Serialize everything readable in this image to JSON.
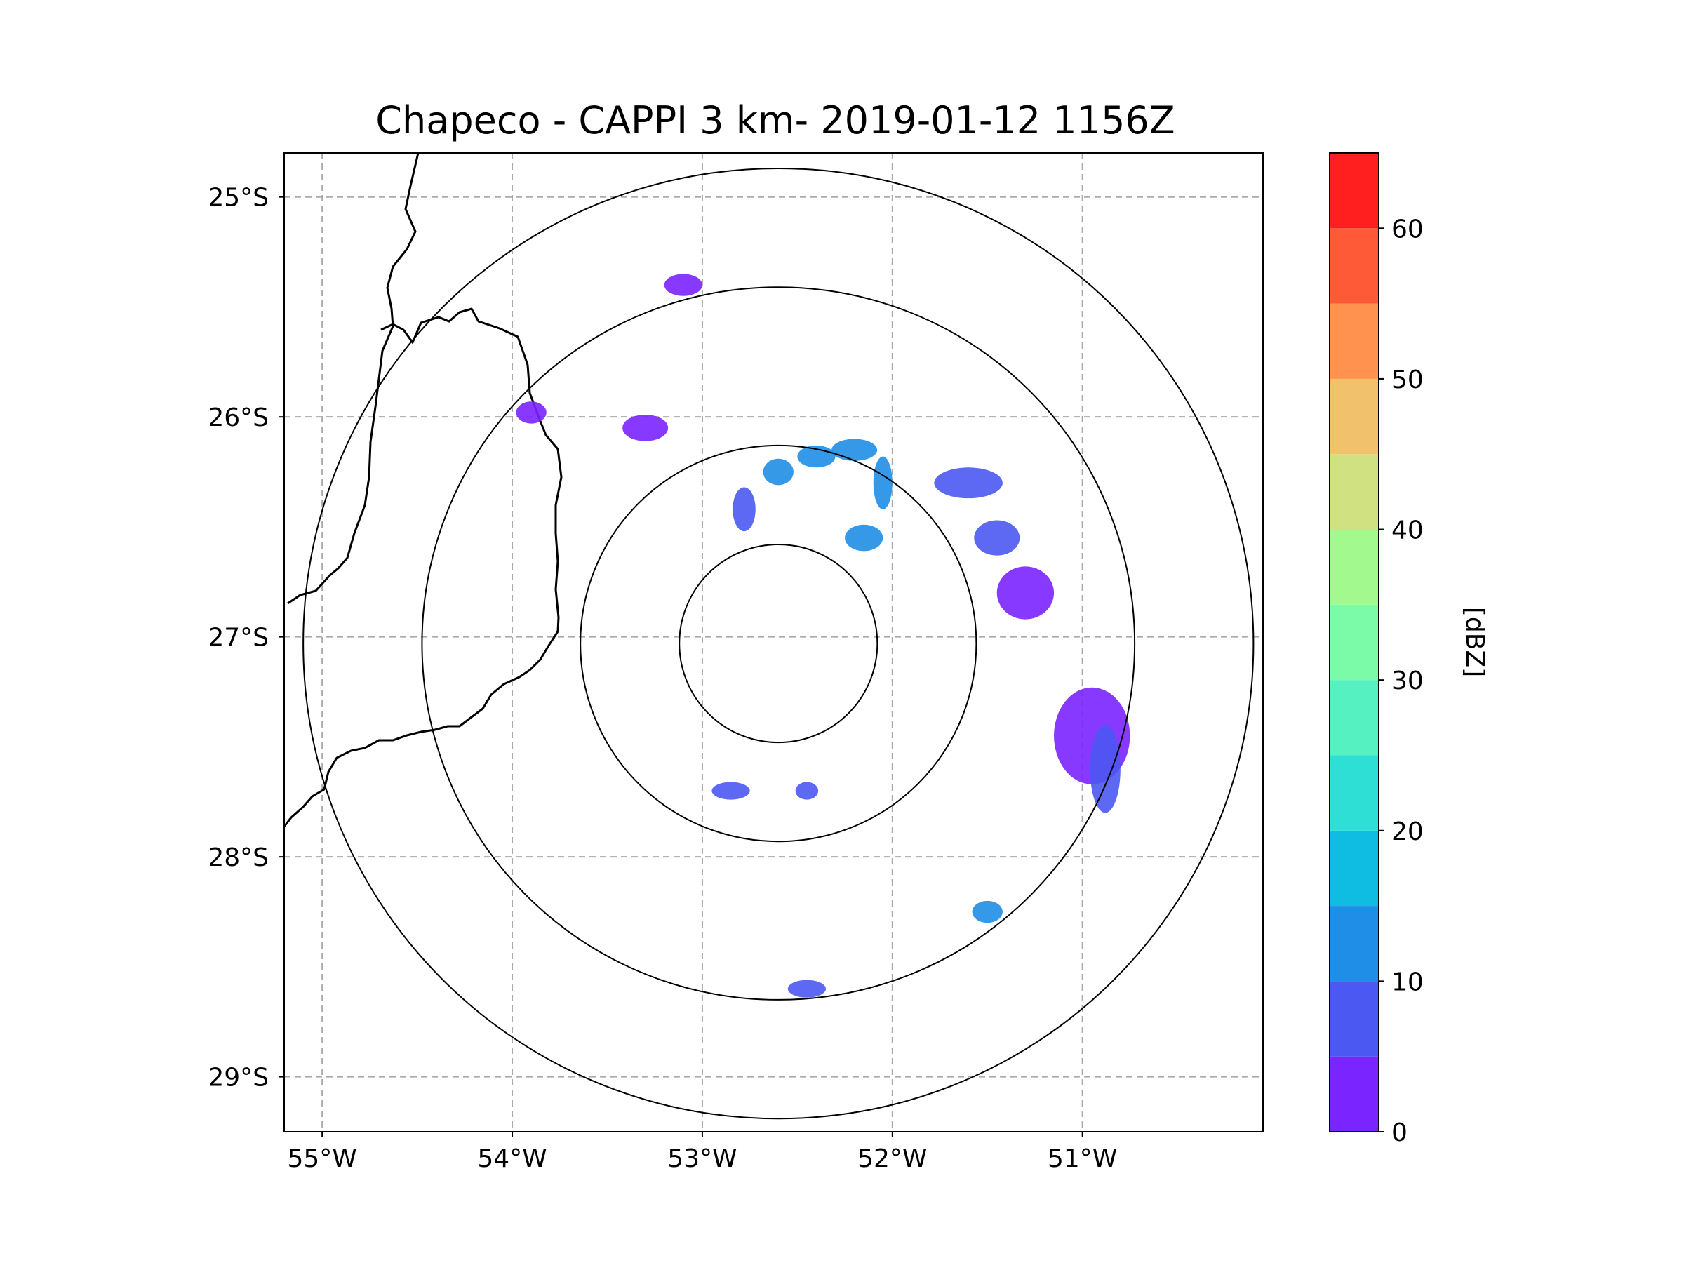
{
  "chart_data": {
    "type": "heatmap",
    "title": "Chapeco - CAPPI 3 km- 2019-01-12 1156Z",
    "map": {
      "lon_range": [
        -55.2,
        -50.05
      ],
      "lat_range": [
        -29.25,
        -24.8
      ],
      "radar_center": {
        "lon": -52.6,
        "lat": -27.03
      },
      "range_rings_deg": [
        0.45,
        0.9,
        1.62,
        2.16
      ],
      "gridlines": true,
      "coastlines_and_borders": true
    },
    "x_ticks": [
      {
        "value": -55,
        "label": "55°W"
      },
      {
        "value": -54,
        "label": "54°W"
      },
      {
        "value": -53,
        "label": "53°W"
      },
      {
        "value": -52,
        "label": "52°W"
      },
      {
        "value": -51,
        "label": "51°W"
      }
    ],
    "y_ticks": [
      {
        "value": -25,
        "label": "25°S"
      },
      {
        "value": -26,
        "label": "26°S"
      },
      {
        "value": -27,
        "label": "27°S"
      },
      {
        "value": -28,
        "label": "28°S"
      },
      {
        "value": -29,
        "label": "29°S"
      }
    ],
    "colorbar": {
      "label": "[dBZ]",
      "range": [
        0,
        65
      ],
      "ticks": [
        {
          "value": 0,
          "label": "0"
        },
        {
          "value": 10,
          "label": "10"
        },
        {
          "value": 20,
          "label": "20"
        },
        {
          "value": 30,
          "label": "30"
        },
        {
          "value": 40,
          "label": "40"
        },
        {
          "value": 50,
          "label": "50"
        },
        {
          "value": 60,
          "label": "60"
        }
      ],
      "bins": [
        {
          "from": 0,
          "to": 5,
          "color": "#7a24ff"
        },
        {
          "from": 5,
          "to": 10,
          "color": "#4b58f2"
        },
        {
          "from": 10,
          "to": 15,
          "color": "#1f8ee6"
        },
        {
          "from": 15,
          "to": 20,
          "color": "#0fbde2"
        },
        {
          "from": 20,
          "to": 25,
          "color": "#2edfd5"
        },
        {
          "from": 25,
          "to": 30,
          "color": "#55f1c0"
        },
        {
          "from": 30,
          "to": 35,
          "color": "#7bfaa8"
        },
        {
          "from": 35,
          "to": 40,
          "color": "#a2f98d"
        },
        {
          "from": 40,
          "to": 45,
          "color": "#cfe181"
        },
        {
          "from": 45,
          "to": 50,
          "color": "#f1c26b"
        },
        {
          "from": 50,
          "to": 55,
          "color": "#ff924f"
        },
        {
          "from": 55,
          "to": 60,
          "color": "#ff5a37"
        },
        {
          "from": 60,
          "to": 65,
          "color": "#ff1f1f"
        }
      ]
    },
    "echoes": [
      {
        "lon": -52.15,
        "lat": -26.55,
        "dbz": 14,
        "rx": 0.1,
        "ry": 0.06
      },
      {
        "lon": -52.2,
        "lat": -26.15,
        "dbz": 13,
        "rx": 0.12,
        "ry": 0.05
      },
      {
        "lon": -52.05,
        "lat": -26.3,
        "dbz": 10,
        "rx": 0.05,
        "ry": 0.12
      },
      {
        "lon": -52.6,
        "lat": -26.25,
        "dbz": 11,
        "rx": 0.08,
        "ry": 0.06
      },
      {
        "lon": -52.78,
        "lat": -26.42,
        "dbz": 9,
        "rx": 0.06,
        "ry": 0.1
      },
      {
        "lon": -52.4,
        "lat": -26.18,
        "dbz": 12,
        "rx": 0.1,
        "ry": 0.05
      },
      {
        "lon": -51.6,
        "lat": -26.3,
        "dbz": 8,
        "rx": 0.18,
        "ry": 0.07
      },
      {
        "lon": -51.3,
        "lat": -26.8,
        "dbz": 3,
        "rx": 0.15,
        "ry": 0.12
      },
      {
        "lon": -51.45,
        "lat": -26.55,
        "dbz": 5,
        "rx": 0.12,
        "ry": 0.08
      },
      {
        "lon": -50.95,
        "lat": -27.45,
        "dbz": 4,
        "rx": 0.2,
        "ry": 0.22
      },
      {
        "lon": -50.88,
        "lat": -27.6,
        "dbz": 6,
        "rx": 0.08,
        "ry": 0.2
      },
      {
        "lon": -53.3,
        "lat": -26.05,
        "dbz": 4,
        "rx": 0.12,
        "ry": 0.06
      },
      {
        "lon": -53.9,
        "lat": -25.98,
        "dbz": 4,
        "rx": 0.08,
        "ry": 0.05
      },
      {
        "lon": -53.1,
        "lat": -25.4,
        "dbz": 3,
        "rx": 0.1,
        "ry": 0.05
      },
      {
        "lon": -52.85,
        "lat": -27.7,
        "dbz": 7,
        "rx": 0.1,
        "ry": 0.04
      },
      {
        "lon": -52.45,
        "lat": -27.7,
        "dbz": 8,
        "rx": 0.06,
        "ry": 0.04
      },
      {
        "lon": -51.5,
        "lat": -28.25,
        "dbz": 12,
        "rx": 0.08,
        "ry": 0.05
      },
      {
        "lon": -52.45,
        "lat": -28.6,
        "dbz": 5,
        "rx": 0.1,
        "ry": 0.04
      }
    ]
  }
}
